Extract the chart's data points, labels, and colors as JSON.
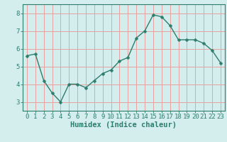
{
  "x": [
    0,
    1,
    2,
    3,
    4,
    5,
    6,
    7,
    8,
    9,
    10,
    11,
    12,
    13,
    14,
    15,
    16,
    17,
    18,
    19,
    20,
    21,
    22,
    23
  ],
  "y": [
    5.6,
    5.7,
    4.2,
    3.5,
    3.0,
    4.0,
    4.0,
    3.8,
    4.2,
    4.6,
    4.8,
    5.3,
    5.5,
    6.6,
    7.0,
    7.9,
    7.8,
    7.3,
    6.5,
    6.5,
    6.5,
    6.3,
    5.9,
    5.2
  ],
  "xlabel": "Humidex (Indice chaleur)",
  "xlim": [
    -0.5,
    23.5
  ],
  "ylim": [
    2.5,
    8.5
  ],
  "yticks": [
    3,
    4,
    5,
    6,
    7,
    8
  ],
  "xtick_labels": [
    "0",
    "1",
    "2",
    "3",
    "4",
    "5",
    "6",
    "7",
    "8",
    "9",
    "10",
    "11",
    "12",
    "13",
    "14",
    "15",
    "16",
    "17",
    "18",
    "19",
    "20",
    "21",
    "22",
    "23"
  ],
  "line_color": "#2d7d6d",
  "marker_color": "#2d7d6d",
  "bg_color": "#d4eeee",
  "grid_color": "#e8a0a0",
  "axis_color": "#2d7d6d",
  "tick_color": "#2d7d6d",
  "label_color": "#2d7d6d",
  "font_size": 6.5,
  "xlabel_fontsize": 7.5,
  "marker_size": 2.5,
  "linewidth": 1.0
}
